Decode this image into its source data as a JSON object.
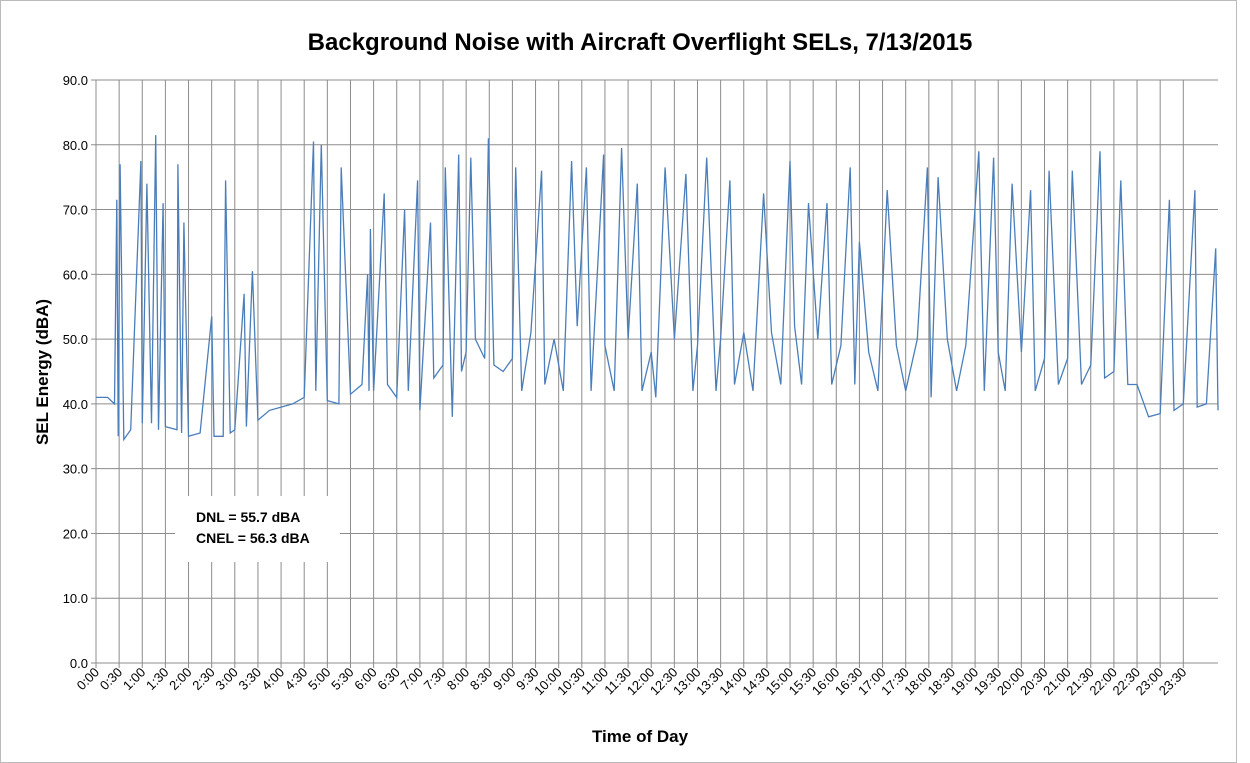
{
  "chart_data": {
    "type": "line",
    "title": "Background Noise with Aircraft Overflight SELs, 7/13/2015",
    "x_label": "Time of Day",
    "y_label": "SEL Energy (dBA)",
    "annotations": [
      "DNL = 55.7 dBA",
      "CNEL = 56.3 dBA"
    ],
    "x": [
      0,
      0.25,
      0.4,
      0.45,
      0.48,
      0.52,
      0.6,
      0.75,
      0.97,
      1.0,
      1.1,
      1.2,
      1.29,
      1.35,
      1.45,
      1.5,
      1.75,
      1.77,
      1.85,
      1.9,
      2.0,
      2.25,
      2.5,
      2.55,
      2.75,
      2.8,
      2.9,
      3.0,
      3.2,
      3.25,
      3.38,
      3.5,
      3.75,
      4.0,
      4.25,
      4.5,
      4.7,
      4.75,
      4.87,
      5.0,
      5.25,
      5.3,
      5.5,
      5.75,
      5.87,
      5.9,
      5.93,
      6.0,
      6.23,
      6.3,
      6.5,
      6.67,
      6.75,
      6.95,
      7.0,
      7.23,
      7.3,
      7.5,
      7.55,
      7.7,
      7.84,
      7.9,
      8.0,
      8.1,
      8.2,
      8.4,
      8.48,
      8.6,
      8.8,
      9.0,
      9.07,
      9.2,
      9.4,
      9.63,
      9.7,
      9.9,
      10.1,
      10.28,
      10.4,
      10.6,
      10.7,
      10.97,
      11.0,
      11.2,
      11.36,
      11.5,
      11.7,
      11.8,
      12.0,
      12.1,
      12.3,
      12.5,
      12.75,
      12.9,
      13.0,
      13.2,
      13.4,
      13.5,
      13.7,
      13.8,
      14.0,
      14.2,
      14.43,
      14.6,
      14.8,
      15.0,
      15.1,
      15.25,
      15.4,
      15.6,
      15.8,
      15.9,
      16.1,
      16.3,
      16.4,
      16.5,
      16.7,
      16.9,
      17.1,
      17.3,
      17.5,
      17.75,
      17.97,
      18.05,
      18.2,
      18.4,
      18.6,
      18.8,
      19.08,
      19.2,
      19.4,
      19.5,
      19.65,
      19.8,
      20.0,
      20.2,
      20.3,
      20.5,
      20.6,
      20.8,
      21.0,
      21.1,
      21.3,
      21.5,
      21.7,
      21.8,
      22.0,
      22.15,
      22.3,
      22.5,
      22.75,
      23.0,
      23.2,
      23.3,
      23.5,
      23.75,
      23.8,
      24.0,
      24.2,
      24.25
    ],
    "series": [
      {
        "color": "#4a7ebb",
        "values": [
          41,
          41,
          40,
          71.5,
          35,
          77,
          34.5,
          36,
          77.5,
          37,
          74,
          37,
          81.5,
          36,
          71,
          36.5,
          36,
          77,
          35.5,
          68,
          35,
          35.5,
          53.5,
          35,
          35,
          74.5,
          35.5,
          36,
          57,
          36.5,
          60.5,
          37.5,
          39,
          39.5,
          40,
          41,
          80.5,
          42,
          80,
          40.5,
          40,
          76.5,
          41.5,
          43,
          60,
          42,
          67,
          42,
          72.5,
          43,
          41,
          70,
          42,
          74.5,
          39,
          68,
          44,
          46,
          76.5,
          38,
          78.5,
          45,
          48,
          78,
          50,
          47,
          81,
          46,
          45,
          47,
          76.5,
          42,
          51,
          76,
          43,
          50,
          42,
          77.5,
          52,
          76.5,
          42,
          78.5,
          49,
          42,
          79.5,
          50,
          74,
          42,
          48,
          41,
          76.5,
          50,
          75.5,
          42,
          49,
          78,
          42,
          50,
          74.5,
          43,
          51,
          42,
          72.5,
          51,
          43,
          77.5,
          52,
          43,
          71,
          50,
          71,
          43,
          49,
          76.5,
          43,
          65,
          48,
          42,
          73,
          49,
          42,
          50,
          76.5,
          41,
          75,
          50,
          42,
          49,
          79,
          42,
          78,
          48,
          42,
          74,
          48,
          73,
          42,
          47,
          76,
          43,
          47,
          76,
          43,
          46,
          79,
          44,
          45,
          74.5,
          43,
          43,
          38,
          38.5,
          71.5,
          39,
          40,
          73,
          39.5,
          40,
          64,
          39
        ]
      }
    ],
    "xlim": [
      0,
      24.25
    ],
    "xticks": [
      {
        "value": 0,
        "label": "0:00"
      },
      {
        "value": 0.5,
        "label": "0:30"
      },
      {
        "value": 1,
        "label": "1:00"
      },
      {
        "value": 1.5,
        "label": "1:30"
      },
      {
        "value": 2,
        "label": "2:00"
      },
      {
        "value": 2.5,
        "label": "2:30"
      },
      {
        "value": 3,
        "label": "3:00"
      },
      {
        "value": 3.5,
        "label": "3:30"
      },
      {
        "value": 4,
        "label": "4:00"
      },
      {
        "value": 4.5,
        "label": "4:30"
      },
      {
        "value": 5,
        "label": "5:00"
      },
      {
        "value": 5.5,
        "label": "5:30"
      },
      {
        "value": 6,
        "label": "6:00"
      },
      {
        "value": 6.5,
        "label": "6:30"
      },
      {
        "value": 7,
        "label": "7:00"
      },
      {
        "value": 7.5,
        "label": "7:30"
      },
      {
        "value": 8,
        "label": "8:00"
      },
      {
        "value": 8.5,
        "label": "8:30"
      },
      {
        "value": 9,
        "label": "9:00"
      },
      {
        "value": 9.5,
        "label": "9:30"
      },
      {
        "value": 10,
        "label": "10:00"
      },
      {
        "value": 10.5,
        "label": "10:30"
      },
      {
        "value": 11,
        "label": "11:00"
      },
      {
        "value": 11.5,
        "label": "11:30"
      },
      {
        "value": 12,
        "label": "12:00"
      },
      {
        "value": 12.5,
        "label": "12:30"
      },
      {
        "value": 13,
        "label": "13:00"
      },
      {
        "value": 13.5,
        "label": "13:30"
      },
      {
        "value": 14,
        "label": "14:00"
      },
      {
        "value": 14.5,
        "label": "14:30"
      },
      {
        "value": 15,
        "label": "15:00"
      },
      {
        "value": 15.5,
        "label": "15:30"
      },
      {
        "value": 16,
        "label": "16:00"
      },
      {
        "value": 16.5,
        "label": "16:30"
      },
      {
        "value": 17,
        "label": "17:00"
      },
      {
        "value": 17.5,
        "label": "17:30"
      },
      {
        "value": 18,
        "label": "18:00"
      },
      {
        "value": 18.5,
        "label": "18:30"
      },
      {
        "value": 19,
        "label": "19:00"
      },
      {
        "value": 19.5,
        "label": "19:30"
      },
      {
        "value": 20,
        "label": "20:00"
      },
      {
        "value": 20.5,
        "label": "20:30"
      },
      {
        "value": 21,
        "label": "21:00"
      },
      {
        "value": 21.5,
        "label": "21:30"
      },
      {
        "value": 22,
        "label": "22:00"
      },
      {
        "value": 22.5,
        "label": "22:30"
      },
      {
        "value": 23,
        "label": "23:00"
      },
      {
        "value": 23.5,
        "label": "23:30"
      }
    ],
    "ylim": [
      0,
      90
    ],
    "yticks": [
      {
        "value": 0,
        "label": "0.0"
      },
      {
        "value": 10,
        "label": "10.0"
      },
      {
        "value": 20,
        "label": "20.0"
      },
      {
        "value": 30,
        "label": "30.0"
      },
      {
        "value": 40,
        "label": "40.0"
      },
      {
        "value": 50,
        "label": "50.0"
      },
      {
        "value": 60,
        "label": "60.0"
      },
      {
        "value": 70,
        "label": "70.0"
      },
      {
        "value": 80,
        "label": "80.0"
      },
      {
        "value": 90,
        "label": "90.0"
      }
    ],
    "grid": true
  }
}
